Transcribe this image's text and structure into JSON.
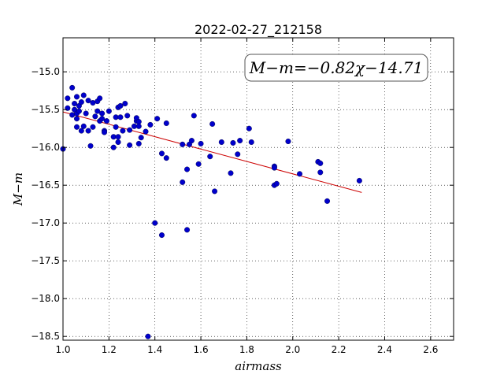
{
  "chart_data": {
    "type": "scatter",
    "title": "2022-02-27_212158",
    "xlabel": "airmass",
    "ylabel": "M−m",
    "xlim": [
      1.0,
      2.7
    ],
    "ylim": [
      -18.55,
      -14.55
    ],
    "y_inverted": true,
    "grid": true,
    "xticks": [
      1.0,
      1.2,
      1.4,
      1.6,
      1.8,
      2.0,
      2.2,
      2.4,
      2.6
    ],
    "xtick_labels": [
      "1.0",
      "1.2",
      "1.4",
      "1.6",
      "1.8",
      "2.0",
      "2.2",
      "2.4",
      "2.6"
    ],
    "yticks": [
      -15.0,
      -15.5,
      -16.0,
      -16.5,
      -17.0,
      -17.5,
      -18.0,
      -18.5
    ],
    "ytick_labels": [
      "−15.0",
      "−15.5",
      "−16.0",
      "−16.5",
      "−17.0",
      "−17.5",
      "−18.0",
      "−18.5"
    ],
    "annotation": "M−m=−0.82χ−14.71",
    "fit": {
      "slope": -0.82,
      "intercept": -14.71,
      "x_range": [
        1.0,
        2.3
      ],
      "color": "#cc0000"
    },
    "marker_color": "#0000cc",
    "points": [
      [
        1.0,
        -16.02
      ],
      [
        1.02,
        -15.35
      ],
      [
        1.02,
        -15.48
      ],
      [
        1.04,
        -15.21
      ],
      [
        1.04,
        -15.57
      ],
      [
        1.05,
        -15.42
      ],
      [
        1.05,
        -15.5
      ],
      [
        1.06,
        -15.33
      ],
      [
        1.06,
        -15.55
      ],
      [
        1.06,
        -15.62
      ],
      [
        1.06,
        -15.73
      ],
      [
        1.07,
        -15.45
      ],
      [
        1.07,
        -15.52
      ],
      [
        1.08,
        -15.4
      ],
      [
        1.08,
        -15.78
      ],
      [
        1.09,
        -15.31
      ],
      [
        1.09,
        -15.72
      ],
      [
        1.1,
        -15.55
      ],
      [
        1.11,
        -15.38
      ],
      [
        1.11,
        -15.78
      ],
      [
        1.12,
        -15.98
      ],
      [
        1.13,
        -15.41
      ],
      [
        1.13,
        -15.73
      ],
      [
        1.14,
        -15.59
      ],
      [
        1.15,
        -15.39
      ],
      [
        1.15,
        -15.52
      ],
      [
        1.16,
        -15.35
      ],
      [
        1.16,
        -15.65
      ],
      [
        1.17,
        -15.55
      ],
      [
        1.17,
        -15.62
      ],
      [
        1.18,
        -15.78
      ],
      [
        1.18,
        -15.8
      ],
      [
        1.19,
        -15.65
      ],
      [
        1.2,
        -15.52
      ],
      [
        1.22,
        -15.86
      ],
      [
        1.22,
        -16.0
      ],
      [
        1.23,
        -15.73
      ],
      [
        1.23,
        -15.6
      ],
      [
        1.24,
        -15.47
      ],
      [
        1.24,
        -15.86
      ],
      [
        1.24,
        -15.93
      ],
      [
        1.25,
        -15.45
      ],
      [
        1.25,
        -15.6
      ],
      [
        1.26,
        -15.78
      ],
      [
        1.27,
        -15.42
      ],
      [
        1.28,
        -15.58
      ],
      [
        1.29,
        -15.77
      ],
      [
        1.29,
        -15.97
      ],
      [
        1.31,
        -15.72
      ],
      [
        1.32,
        -15.65
      ],
      [
        1.32,
        -15.61
      ],
      [
        1.33,
        -15.66
      ],
      [
        1.33,
        -15.72
      ],
      [
        1.33,
        -15.95
      ],
      [
        1.34,
        -15.87
      ],
      [
        1.36,
        -15.79
      ],
      [
        1.37,
        -18.5
      ],
      [
        1.38,
        -15.7
      ],
      [
        1.4,
        -17.0
      ],
      [
        1.41,
        -15.62
      ],
      [
        1.43,
        -17.16
      ],
      [
        1.43,
        -16.08
      ],
      [
        1.45,
        -15.68
      ],
      [
        1.45,
        -16.14
      ],
      [
        1.52,
        -15.96
      ],
      [
        1.52,
        -16.46
      ],
      [
        1.54,
        -17.09
      ],
      [
        1.54,
        -16.29
      ],
      [
        1.55,
        -15.96
      ],
      [
        1.56,
        -15.91
      ],
      [
        1.57,
        -15.58
      ],
      [
        1.59,
        -16.22
      ],
      [
        1.6,
        -15.95
      ],
      [
        1.64,
        -16.12
      ],
      [
        1.65,
        -15.69
      ],
      [
        1.66,
        -16.58
      ],
      [
        1.69,
        -15.93
      ],
      [
        1.73,
        -16.34
      ],
      [
        1.74,
        -15.94
      ],
      [
        1.76,
        -16.09
      ],
      [
        1.77,
        -15.91
      ],
      [
        1.81,
        -15.75
      ],
      [
        1.82,
        -15.93
      ],
      [
        1.92,
        -16.25
      ],
      [
        1.92,
        -16.27
      ],
      [
        1.92,
        -16.5
      ],
      [
        1.93,
        -16.48
      ],
      [
        1.98,
        -15.92
      ],
      [
        2.03,
        -16.35
      ],
      [
        2.11,
        -16.19
      ],
      [
        2.12,
        -16.21
      ],
      [
        2.12,
        -16.33
      ],
      [
        2.15,
        -16.71
      ],
      [
        2.29,
        -16.44
      ]
    ]
  }
}
